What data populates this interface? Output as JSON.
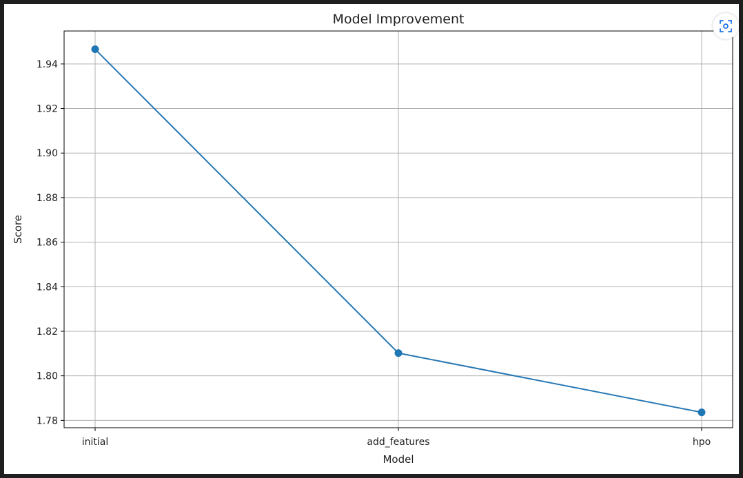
{
  "chart_data": {
    "type": "line",
    "title": "Model Improvement",
    "xlabel": "Model",
    "ylabel": "Score",
    "categories": [
      "initial",
      "add_features",
      "hpo"
    ],
    "values": [
      1.9466,
      1.8102,
      1.7836
    ],
    "yticks": [
      "1.78",
      "1.80",
      "1.82",
      "1.84",
      "1.86",
      "1.88",
      "1.90",
      "1.92",
      "1.94"
    ],
    "ylim": [
      1.7767,
      1.9548
    ],
    "grid": true,
    "marker": "circle"
  },
  "colors": {
    "line": "#2878b5",
    "marker": "#1f77b4",
    "grid": "#b0b0b0",
    "axis": "#000000",
    "icon_accent": "#1a73e8"
  },
  "toolbar": {
    "icon": "image-search-icon"
  }
}
